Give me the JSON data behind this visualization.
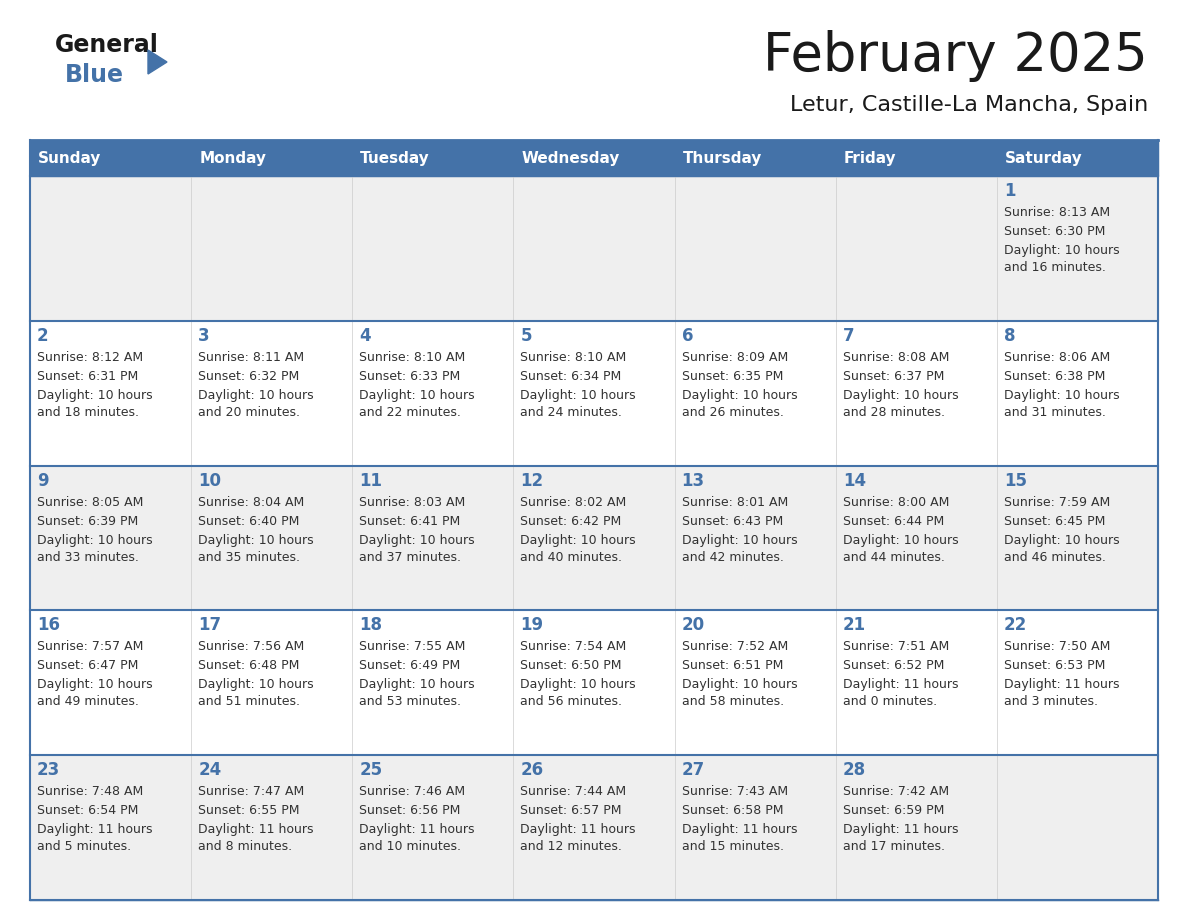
{
  "title": "February 2025",
  "subtitle": "Letur, Castille-La Mancha, Spain",
  "days_of_week": [
    "Sunday",
    "Monday",
    "Tuesday",
    "Wednesday",
    "Thursday",
    "Friday",
    "Saturday"
  ],
  "header_bg": "#4472a8",
  "header_text": "#ffffff",
  "cell_bg_odd": "#efefef",
  "cell_bg_even": "#ffffff",
  "border_color": "#4472a8",
  "text_color": "#333333",
  "day_number_color": "#4472a8",
  "logo_general_color": "#1a1a1a",
  "logo_blue_color": "#4472a8",
  "title_color": "#1a1a1a",
  "subtitle_color": "#1a1a1a",
  "calendar_data": [
    [
      {
        "day": null,
        "sunrise": null,
        "sunset": null,
        "daylight": null
      },
      {
        "day": null,
        "sunrise": null,
        "sunset": null,
        "daylight": null
      },
      {
        "day": null,
        "sunrise": null,
        "sunset": null,
        "daylight": null
      },
      {
        "day": null,
        "sunrise": null,
        "sunset": null,
        "daylight": null
      },
      {
        "day": null,
        "sunrise": null,
        "sunset": null,
        "daylight": null
      },
      {
        "day": null,
        "sunrise": null,
        "sunset": null,
        "daylight": null
      },
      {
        "day": 1,
        "sunrise": "8:13 AM",
        "sunset": "6:30 PM",
        "daylight": "10 hours\nand 16 minutes."
      }
    ],
    [
      {
        "day": 2,
        "sunrise": "8:12 AM",
        "sunset": "6:31 PM",
        "daylight": "10 hours\nand 18 minutes."
      },
      {
        "day": 3,
        "sunrise": "8:11 AM",
        "sunset": "6:32 PM",
        "daylight": "10 hours\nand 20 minutes."
      },
      {
        "day": 4,
        "sunrise": "8:10 AM",
        "sunset": "6:33 PM",
        "daylight": "10 hours\nand 22 minutes."
      },
      {
        "day": 5,
        "sunrise": "8:10 AM",
        "sunset": "6:34 PM",
        "daylight": "10 hours\nand 24 minutes."
      },
      {
        "day": 6,
        "sunrise": "8:09 AM",
        "sunset": "6:35 PM",
        "daylight": "10 hours\nand 26 minutes."
      },
      {
        "day": 7,
        "sunrise": "8:08 AM",
        "sunset": "6:37 PM",
        "daylight": "10 hours\nand 28 minutes."
      },
      {
        "day": 8,
        "sunrise": "8:06 AM",
        "sunset": "6:38 PM",
        "daylight": "10 hours\nand 31 minutes."
      }
    ],
    [
      {
        "day": 9,
        "sunrise": "8:05 AM",
        "sunset": "6:39 PM",
        "daylight": "10 hours\nand 33 minutes."
      },
      {
        "day": 10,
        "sunrise": "8:04 AM",
        "sunset": "6:40 PM",
        "daylight": "10 hours\nand 35 minutes."
      },
      {
        "day": 11,
        "sunrise": "8:03 AM",
        "sunset": "6:41 PM",
        "daylight": "10 hours\nand 37 minutes."
      },
      {
        "day": 12,
        "sunrise": "8:02 AM",
        "sunset": "6:42 PM",
        "daylight": "10 hours\nand 40 minutes."
      },
      {
        "day": 13,
        "sunrise": "8:01 AM",
        "sunset": "6:43 PM",
        "daylight": "10 hours\nand 42 minutes."
      },
      {
        "day": 14,
        "sunrise": "8:00 AM",
        "sunset": "6:44 PM",
        "daylight": "10 hours\nand 44 minutes."
      },
      {
        "day": 15,
        "sunrise": "7:59 AM",
        "sunset": "6:45 PM",
        "daylight": "10 hours\nand 46 minutes."
      }
    ],
    [
      {
        "day": 16,
        "sunrise": "7:57 AM",
        "sunset": "6:47 PM",
        "daylight": "10 hours\nand 49 minutes."
      },
      {
        "day": 17,
        "sunrise": "7:56 AM",
        "sunset": "6:48 PM",
        "daylight": "10 hours\nand 51 minutes."
      },
      {
        "day": 18,
        "sunrise": "7:55 AM",
        "sunset": "6:49 PM",
        "daylight": "10 hours\nand 53 minutes."
      },
      {
        "day": 19,
        "sunrise": "7:54 AM",
        "sunset": "6:50 PM",
        "daylight": "10 hours\nand 56 minutes."
      },
      {
        "day": 20,
        "sunrise": "7:52 AM",
        "sunset": "6:51 PM",
        "daylight": "10 hours\nand 58 minutes."
      },
      {
        "day": 21,
        "sunrise": "7:51 AM",
        "sunset": "6:52 PM",
        "daylight": "11 hours\nand 0 minutes."
      },
      {
        "day": 22,
        "sunrise": "7:50 AM",
        "sunset": "6:53 PM",
        "daylight": "11 hours\nand 3 minutes."
      }
    ],
    [
      {
        "day": 23,
        "sunrise": "7:48 AM",
        "sunset": "6:54 PM",
        "daylight": "11 hours\nand 5 minutes."
      },
      {
        "day": 24,
        "sunrise": "7:47 AM",
        "sunset": "6:55 PM",
        "daylight": "11 hours\nand 8 minutes."
      },
      {
        "day": 25,
        "sunrise": "7:46 AM",
        "sunset": "6:56 PM",
        "daylight": "11 hours\nand 10 minutes."
      },
      {
        "day": 26,
        "sunrise": "7:44 AM",
        "sunset": "6:57 PM",
        "daylight": "11 hours\nand 12 minutes."
      },
      {
        "day": 27,
        "sunrise": "7:43 AM",
        "sunset": "6:58 PM",
        "daylight": "11 hours\nand 15 minutes."
      },
      {
        "day": 28,
        "sunrise": "7:42 AM",
        "sunset": "6:59 PM",
        "daylight": "11 hours\nand 17 minutes."
      },
      {
        "day": null,
        "sunrise": null,
        "sunset": null,
        "daylight": null
      }
    ]
  ]
}
